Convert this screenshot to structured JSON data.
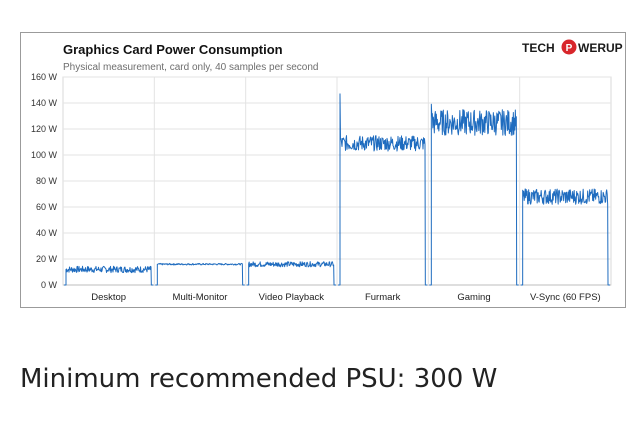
{
  "chart_data": {
    "type": "line",
    "title": "Graphics  Card Power Consumption",
    "subtitle": "Physical measurement, card only, 40 samples per second",
    "logo": {
      "left": "TECH",
      "mid": "P",
      "right": "WERUP",
      "colors": {
        "accent": "#d8262b",
        "text": "#1a1a1a"
      }
    },
    "ylim": [
      0,
      160
    ],
    "yticks": [
      "0 W",
      "20 W",
      "40 W",
      "60 W",
      "80 W",
      "100 W",
      "120 W",
      "140 W",
      "160 W"
    ],
    "ytick_values": [
      0,
      20,
      40,
      60,
      80,
      100,
      120,
      140,
      160
    ],
    "xlabel": "",
    "ylabel": "",
    "grid": true,
    "line_color": "#1f6cbf",
    "categories": [
      "Desktop",
      "Multi-Monitor",
      "Video Playback",
      "Furmark",
      "Gaming",
      "V-Sync (60 FPS)"
    ],
    "segments": [
      {
        "name": "Desktop",
        "mean": 12,
        "noise": 2.5,
        "spike": null
      },
      {
        "name": "Multi-Monitor",
        "mean": 16,
        "noise": 0.6,
        "spike": null
      },
      {
        "name": "Video Playback",
        "mean": 16,
        "noise": 2,
        "spike": null
      },
      {
        "name": "Furmark",
        "mean": 109,
        "noise": 6,
        "spike": 147
      },
      {
        "name": "Gaming",
        "mean": 125,
        "noise": 10,
        "spike": 139
      },
      {
        "name": "V-Sync (60 FPS)",
        "mean": 68,
        "noise": 6,
        "spike": null
      }
    ]
  },
  "footer": {
    "psu_text": "Minimum recommended PSU: 300 W"
  }
}
